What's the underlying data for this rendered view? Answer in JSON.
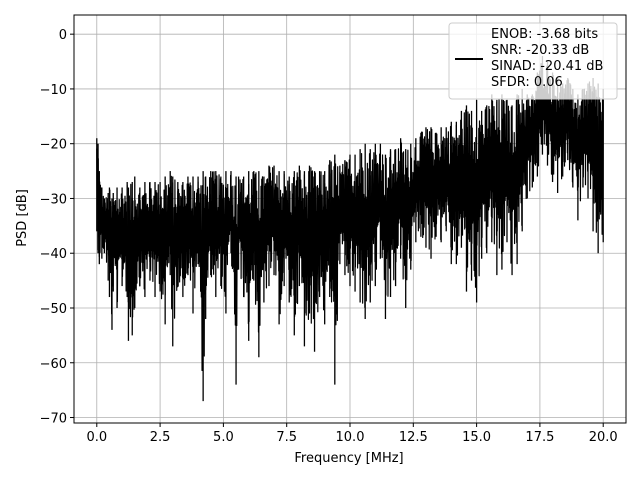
{
  "chart_data": {
    "type": "line",
    "title": "",
    "xlabel": "Frequency [MHz]",
    "ylabel": "PSD [dB]",
    "xlim": [
      -0.9,
      20.9
    ],
    "ylim": [
      -71,
      3.5
    ],
    "xticks": [
      0.0,
      2.5,
      5.0,
      7.5,
      10.0,
      12.5,
      15.0,
      17.5,
      20.0
    ],
    "xtick_labels": [
      "0.0",
      "2.5",
      "5.0",
      "7.5",
      "10.0",
      "12.5",
      "15.0",
      "17.5",
      "20.0"
    ],
    "yticks": [
      0,
      -10,
      -20,
      -30,
      -40,
      -50,
      -60,
      -70
    ],
    "ytick_labels": [
      "0",
      "−10",
      "−20",
      "−30",
      "−40",
      "−50",
      "−60",
      "−70"
    ],
    "grid": true,
    "legend_position": "top-right",
    "legend": [
      "ENOB: -3.68 bits",
      "SNR: -20.33 dB",
      "SINAD: -20.41 dB",
      "SFDR: 0.06"
    ],
    "series": [
      {
        "color": "#000000",
        "x": [
          0.0,
          0.05,
          0.1,
          0.2,
          0.3,
          0.45,
          0.5,
          0.6,
          0.65,
          0.8,
          1.0,
          1.2,
          1.25,
          1.4,
          1.5,
          1.7,
          1.9,
          2.1,
          2.3,
          2.5,
          2.7,
          2.9,
          3.0,
          3.2,
          3.4,
          3.6,
          3.8,
          4.0,
          4.2,
          4.3,
          4.5,
          4.7,
          4.9,
          5.1,
          5.3,
          5.5,
          5.6,
          5.8,
          6.0,
          6.2,
          6.4,
          6.6,
          6.8,
          7.0,
          7.2,
          7.4,
          7.6,
          7.8,
          8.0,
          8.2,
          8.4,
          8.6,
          8.8,
          9.0,
          9.2,
          9.4,
          9.6,
          9.8,
          10.0,
          10.2,
          10.4,
          10.6,
          10.8,
          11.0,
          11.2,
          11.4,
          11.6,
          11.8,
          12.0,
          12.2,
          12.4,
          12.6,
          12.8,
          13.0,
          13.2,
          13.4,
          13.6,
          13.8,
          14.0,
          14.2,
          14.4,
          14.6,
          14.8,
          15.0,
          15.2,
          15.4,
          15.6,
          15.8,
          16.0,
          16.2,
          16.4,
          16.6,
          16.8,
          17.0,
          17.2,
          17.4,
          17.6,
          17.8,
          18.0,
          18.2,
          18.4,
          18.6,
          18.8,
          19.0,
          19.2,
          19.4,
          19.6,
          19.8,
          20.0
        ],
        "upper": [
          -19,
          -20,
          -25,
          -28,
          -30,
          -29,
          -28,
          -30,
          -29,
          -28,
          -28,
          -27,
          -28,
          -27,
          -26,
          -28,
          -27,
          -27,
          -27,
          -27,
          -26,
          -25,
          -26,
          -27,
          -27,
          -26,
          -26,
          -26,
          -25,
          -26,
          -25,
          -25,
          -26,
          -25,
          -25,
          -26,
          -26,
          -26,
          -25,
          -25,
          -25,
          -26,
          -24,
          -24,
          -25,
          -25,
          -26,
          -25,
          -24,
          -25,
          -24,
          -25,
          -25,
          -25,
          -23,
          -22,
          -24,
          -23,
          -22,
          -22,
          -21,
          -20,
          -21,
          -20,
          -20,
          -22,
          -21,
          -21,
          -19,
          -21,
          -20,
          -19,
          -18,
          -17,
          -17,
          -18,
          -17,
          -17,
          -16,
          -16,
          -14,
          -13,
          -14,
          -12,
          -14,
          -13,
          -11,
          -12,
          -11,
          -12,
          -13,
          -11,
          -10,
          -11,
          -11,
          -7,
          -4,
          -5,
          -7,
          -8,
          -9,
          -8,
          -10,
          -11,
          -10,
          -9,
          -8,
          -9,
          -10
        ],
        "lower": [
          -36,
          -40,
          -42,
          -41,
          -40,
          -45,
          -48,
          -54,
          -47,
          -50,
          -46,
          -48,
          -56,
          -55,
          -50,
          -46,
          -48,
          -45,
          -48,
          -47,
          -53,
          -44,
          -57,
          -46,
          -48,
          -44,
          -51,
          -42,
          -67,
          -52,
          -44,
          -48,
          -46,
          -51,
          -40,
          -64,
          -43,
          -48,
          -56,
          -45,
          -59,
          -49,
          -46,
          -44,
          -53,
          -46,
          -49,
          -55,
          -46,
          -57,
          -51,
          -58,
          -48,
          -53,
          -48,
          -64,
          -42,
          -44,
          -46,
          -47,
          -49,
          -52,
          -49,
          -46,
          -41,
          -52,
          -48,
          -46,
          -41,
          -50,
          -43,
          -38,
          -37,
          -39,
          -41,
          -37,
          -38,
          -36,
          -42,
          -42,
          -39,
          -47,
          -45,
          -49,
          -41,
          -40,
          -38,
          -44,
          -43,
          -38,
          -44,
          -42,
          -36,
          -30,
          -28,
          -26,
          -22,
          -24,
          -27,
          -29,
          -26,
          -23,
          -28,
          -34,
          -28,
          -30,
          -36,
          -40,
          -38
        ]
      }
    ]
  }
}
